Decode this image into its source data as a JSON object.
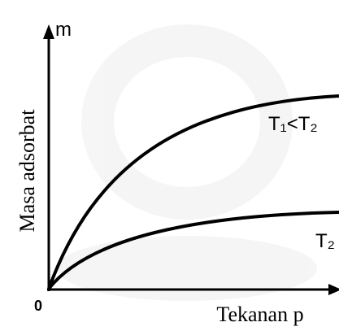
{
  "axes": {
    "y_label": "m",
    "y_title": "Masa adsorbat",
    "origin": "0",
    "x_title": "Tekanan p"
  },
  "curves": [
    {
      "label": "T₁<T₂"
    },
    {
      "label": "T₂"
    }
  ]
}
